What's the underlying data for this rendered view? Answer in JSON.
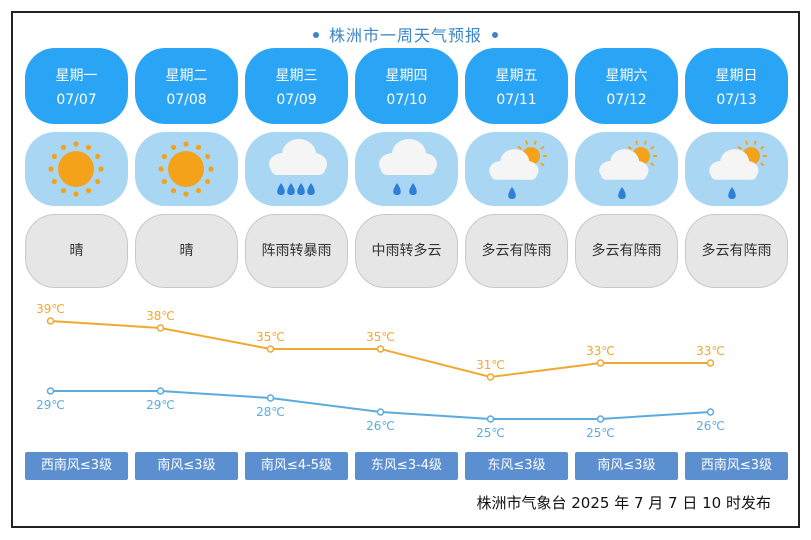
{
  "title": "株洲市一周天气预报",
  "days": [
    {
      "weekday": "星期一",
      "date": "07/07",
      "desc": "晴",
      "icon": "sun-icon",
      "high": "39℃",
      "low": "29℃",
      "wind": "西南风≤3级"
    },
    {
      "weekday": "星期二",
      "date": "07/08",
      "desc": "晴",
      "icon": "sun-icon",
      "high": "38℃",
      "low": "29℃",
      "wind": "南风≤3级"
    },
    {
      "weekday": "星期三",
      "date": "07/09",
      "desc": "阵雨转暴雨",
      "icon": "heavy-rain-icon",
      "high": "35℃",
      "low": "28℃",
      "wind": "南风≤4-5级"
    },
    {
      "weekday": "星期四",
      "date": "07/10",
      "desc": "中雨转多云",
      "icon": "moderate-rain-icon",
      "high": "35℃",
      "low": "26℃",
      "wind": "东风≤3-4级"
    },
    {
      "weekday": "星期五",
      "date": "07/11",
      "desc": "多云有阵雨",
      "icon": "cloud-sun-rain-icon",
      "high": "31℃",
      "low": "25℃",
      "wind": "东风≤3级"
    },
    {
      "weekday": "星期六",
      "date": "07/12",
      "desc": "多云有阵雨",
      "icon": "cloud-sun-rain-icon",
      "high": "33℃",
      "low": "25℃",
      "wind": "南风≤3级"
    },
    {
      "weekday": "星期日",
      "date": "07/13",
      "desc": "多云有阵雨",
      "icon": "cloud-sun-rain-icon",
      "high": "33℃",
      "low": "26℃",
      "wind": "西南风≤3级"
    }
  ],
  "chart_data": {
    "type": "line",
    "categories": [
      "07/07",
      "07/08",
      "07/09",
      "07/10",
      "07/11",
      "07/12",
      "07/13"
    ],
    "series": [
      {
        "values": [
          39,
          38,
          35,
          35,
          31,
          33,
          33
        ],
        "color": "#f0a830"
      },
      {
        "values": [
          29,
          29,
          28,
          26,
          25,
          25,
          26
        ],
        "color": "#5aacdf"
      }
    ],
    "ylim": [
      22,
      42
    ],
    "grid": false
  },
  "footer": "株洲市气象台 2025 年 7 月 7 日 10 时发布"
}
